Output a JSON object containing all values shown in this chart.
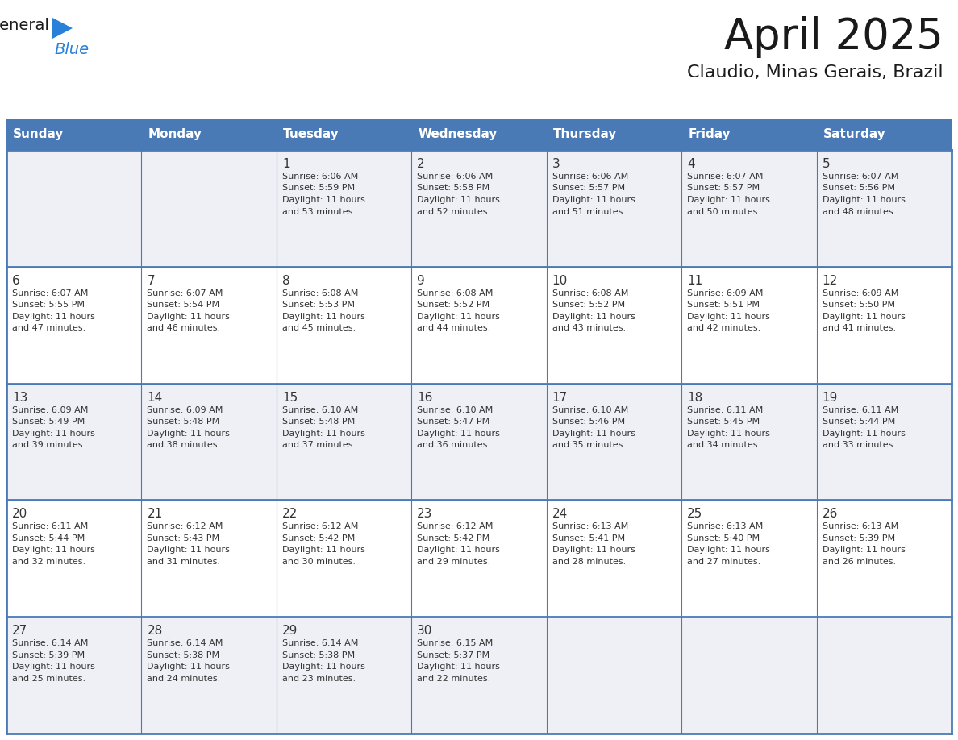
{
  "title": "April 2025",
  "subtitle": "Claudio, Minas Gerais, Brazil",
  "header_bg_color": "#4a7ab5",
  "header_text_color": "#ffffff",
  "cell_bg_color_odd": "#eef0f5",
  "cell_bg_color_even": "#ffffff",
  "grid_line_color": "#4a7ab5",
  "day_names": [
    "Sunday",
    "Monday",
    "Tuesday",
    "Wednesday",
    "Thursday",
    "Friday",
    "Saturday"
  ],
  "text_color": "#333333",
  "days": [
    {
      "day": 1,
      "col": 2,
      "row": 0,
      "sunrise": "6:06 AM",
      "sunset": "5:59 PM",
      "daylight": "11 hours and 53 minutes."
    },
    {
      "day": 2,
      "col": 3,
      "row": 0,
      "sunrise": "6:06 AM",
      "sunset": "5:58 PM",
      "daylight": "11 hours and 52 minutes."
    },
    {
      "day": 3,
      "col": 4,
      "row": 0,
      "sunrise": "6:06 AM",
      "sunset": "5:57 PM",
      "daylight": "11 hours and 51 minutes."
    },
    {
      "day": 4,
      "col": 5,
      "row": 0,
      "sunrise": "6:07 AM",
      "sunset": "5:57 PM",
      "daylight": "11 hours and 50 minutes."
    },
    {
      "day": 5,
      "col": 6,
      "row": 0,
      "sunrise": "6:07 AM",
      "sunset": "5:56 PM",
      "daylight": "11 hours and 48 minutes."
    },
    {
      "day": 6,
      "col": 0,
      "row": 1,
      "sunrise": "6:07 AM",
      "sunset": "5:55 PM",
      "daylight": "11 hours and 47 minutes."
    },
    {
      "day": 7,
      "col": 1,
      "row": 1,
      "sunrise": "6:07 AM",
      "sunset": "5:54 PM",
      "daylight": "11 hours and 46 minutes."
    },
    {
      "day": 8,
      "col": 2,
      "row": 1,
      "sunrise": "6:08 AM",
      "sunset": "5:53 PM",
      "daylight": "11 hours and 45 minutes."
    },
    {
      "day": 9,
      "col": 3,
      "row": 1,
      "sunrise": "6:08 AM",
      "sunset": "5:52 PM",
      "daylight": "11 hours and 44 minutes."
    },
    {
      "day": 10,
      "col": 4,
      "row": 1,
      "sunrise": "6:08 AM",
      "sunset": "5:52 PM",
      "daylight": "11 hours and 43 minutes."
    },
    {
      "day": 11,
      "col": 5,
      "row": 1,
      "sunrise": "6:09 AM",
      "sunset": "5:51 PM",
      "daylight": "11 hours and 42 minutes."
    },
    {
      "day": 12,
      "col": 6,
      "row": 1,
      "sunrise": "6:09 AM",
      "sunset": "5:50 PM",
      "daylight": "11 hours and 41 minutes."
    },
    {
      "day": 13,
      "col": 0,
      "row": 2,
      "sunrise": "6:09 AM",
      "sunset": "5:49 PM",
      "daylight": "11 hours and 39 minutes."
    },
    {
      "day": 14,
      "col": 1,
      "row": 2,
      "sunrise": "6:09 AM",
      "sunset": "5:48 PM",
      "daylight": "11 hours and 38 minutes."
    },
    {
      "day": 15,
      "col": 2,
      "row": 2,
      "sunrise": "6:10 AM",
      "sunset": "5:48 PM",
      "daylight": "11 hours and 37 minutes."
    },
    {
      "day": 16,
      "col": 3,
      "row": 2,
      "sunrise": "6:10 AM",
      "sunset": "5:47 PM",
      "daylight": "11 hours and 36 minutes."
    },
    {
      "day": 17,
      "col": 4,
      "row": 2,
      "sunrise": "6:10 AM",
      "sunset": "5:46 PM",
      "daylight": "11 hours and 35 minutes."
    },
    {
      "day": 18,
      "col": 5,
      "row": 2,
      "sunrise": "6:11 AM",
      "sunset": "5:45 PM",
      "daylight": "11 hours and 34 minutes."
    },
    {
      "day": 19,
      "col": 6,
      "row": 2,
      "sunrise": "6:11 AM",
      "sunset": "5:44 PM",
      "daylight": "11 hours and 33 minutes."
    },
    {
      "day": 20,
      "col": 0,
      "row": 3,
      "sunrise": "6:11 AM",
      "sunset": "5:44 PM",
      "daylight": "11 hours and 32 minutes."
    },
    {
      "day": 21,
      "col": 1,
      "row": 3,
      "sunrise": "6:12 AM",
      "sunset": "5:43 PM",
      "daylight": "11 hours and 31 minutes."
    },
    {
      "day": 22,
      "col": 2,
      "row": 3,
      "sunrise": "6:12 AM",
      "sunset": "5:42 PM",
      "daylight": "11 hours and 30 minutes."
    },
    {
      "day": 23,
      "col": 3,
      "row": 3,
      "sunrise": "6:12 AM",
      "sunset": "5:42 PM",
      "daylight": "11 hours and 29 minutes."
    },
    {
      "day": 24,
      "col": 4,
      "row": 3,
      "sunrise": "6:13 AM",
      "sunset": "5:41 PM",
      "daylight": "11 hours and 28 minutes."
    },
    {
      "day": 25,
      "col": 5,
      "row": 3,
      "sunrise": "6:13 AM",
      "sunset": "5:40 PM",
      "daylight": "11 hours and 27 minutes."
    },
    {
      "day": 26,
      "col": 6,
      "row": 3,
      "sunrise": "6:13 AM",
      "sunset": "5:39 PM",
      "daylight": "11 hours and 26 minutes."
    },
    {
      "day": 27,
      "col": 0,
      "row": 4,
      "sunrise": "6:14 AM",
      "sunset": "5:39 PM",
      "daylight": "11 hours and 25 minutes."
    },
    {
      "day": 28,
      "col": 1,
      "row": 4,
      "sunrise": "6:14 AM",
      "sunset": "5:38 PM",
      "daylight": "11 hours and 24 minutes."
    },
    {
      "day": 29,
      "col": 2,
      "row": 4,
      "sunrise": "6:14 AM",
      "sunset": "5:38 PM",
      "daylight": "11 hours and 23 minutes."
    },
    {
      "day": 30,
      "col": 3,
      "row": 4,
      "sunrise": "6:15 AM",
      "sunset": "5:37 PM",
      "daylight": "11 hours and 22 minutes."
    }
  ],
  "logo_general_color": "#1a1a1a",
  "logo_blue_color": "#2980d9",
  "logo_triangle_color": "#2980d9",
  "fig_width": 11.88,
  "fig_height": 9.18,
  "dpi": 100
}
